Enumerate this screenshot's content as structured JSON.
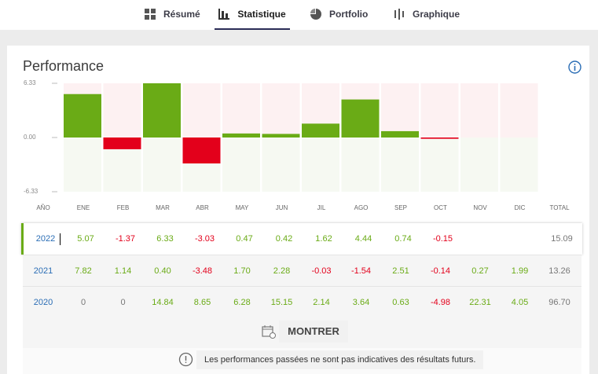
{
  "tabs": [
    "Résumé",
    "Statistique",
    "Portfolio",
    "Graphique"
  ],
  "title": "Performance",
  "chart": {
    "type": "bar",
    "values": [
      5.07,
      -1.37,
      6.33,
      -3.03,
      0.47,
      0.42,
      1.62,
      4.44,
      0.74,
      -0.15,
      null,
      null
    ],
    "ylim": [
      -6.33,
      6.33
    ],
    "yticks": [
      6.33,
      {
        "value": 0,
        "label": "0.00"
      },
      -6.33
    ],
    "color_positive": "#6aab16",
    "color_negative": "#e3001b"
  },
  "table": {
    "header": [
      "AÑO",
      "ENE",
      "FEB",
      "MAR",
      "ABR",
      "MAY",
      "JUN",
      "JIL",
      "AGO",
      "SEP",
      "OCT",
      "NOV",
      "DIC",
      "TOTAL"
    ],
    "rows": [
      [
        "2022",
        "5.07",
        "-1.37",
        "6.33",
        "-3.03",
        "0.47",
        "0.42",
        "1.62",
        "4.44",
        "0.74",
        "-0.15",
        null,
        null,
        "15.09"
      ],
      [
        "2021",
        "7.82",
        "1.14",
        "0.40",
        "-3.48",
        "1.70",
        "2.28",
        "-0.03",
        "-1.54",
        "2.51",
        "-0.14",
        "0.27",
        "1.99",
        "13.26"
      ],
      [
        "2020",
        "0",
        "0",
        "14.84",
        "8.65",
        "6.28",
        "15.15",
        "2.14",
        "3.64",
        "0.63",
        "-4.98",
        "22.31",
        "4.05",
        "96.70"
      ]
    ]
  },
  "button": "MONTRER",
  "note": "Les performances passées ne sont pas indicatives des résultats futurs."
}
